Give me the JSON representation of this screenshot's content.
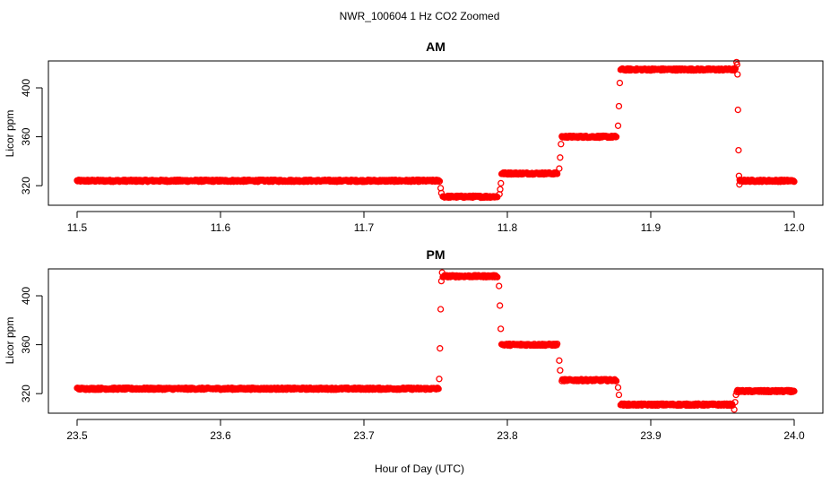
{
  "figure": {
    "title": "NWR_100604  1 Hz CO2 Zoomed",
    "xlabel": "Hour of Day (UTC)"
  },
  "chart_data": [
    {
      "type": "scatter",
      "title": "AM",
      "xlabel": "",
      "ylabel": "Licor ppm",
      "xlim": [
        11.48,
        12.02
      ],
      "ylim": [
        304,
        422
      ],
      "xticks": [
        11.5,
        11.6,
        11.7,
        11.8,
        11.9,
        12.0
      ],
      "xtick_labels": [
        "11.5",
        "11.6",
        "11.7",
        "11.8",
        "11.9",
        "12.0"
      ],
      "yticks": [
        320,
        360,
        400
      ],
      "ytick_labels": [
        "320",
        "360",
        "400"
      ],
      "grid": false,
      "legend": "none",
      "marker_color": "#ff0000",
      "segments": [
        {
          "x_start": 11.5,
          "x_end": 11.753,
          "y": 324
        },
        {
          "x_start": 11.755,
          "x_end": 11.793,
          "y": 311
        },
        {
          "x_start": 11.796,
          "x_end": 11.835,
          "y": 330
        },
        {
          "x_start": 11.838,
          "x_end": 11.876,
          "y": 360
        },
        {
          "x_start": 11.879,
          "x_end": 11.959,
          "y": 415
        },
        {
          "x_start": 11.962,
          "x_end": 12.0,
          "y": 324
        }
      ],
      "transitions": [
        {
          "x": 11.7535,
          "y": 318
        },
        {
          "x": 11.754,
          "y": 314
        },
        {
          "x": 11.7945,
          "y": 313
        },
        {
          "x": 11.795,
          "y": 317
        },
        {
          "x": 11.7955,
          "y": 322
        },
        {
          "x": 11.8362,
          "y": 334
        },
        {
          "x": 11.8368,
          "y": 343
        },
        {
          "x": 11.8374,
          "y": 354
        },
        {
          "x": 11.8772,
          "y": 369
        },
        {
          "x": 11.8778,
          "y": 385
        },
        {
          "x": 11.8784,
          "y": 404
        },
        {
          "x": 11.9598,
          "y": 421
        },
        {
          "x": 11.9602,
          "y": 419
        },
        {
          "x": 11.9605,
          "y": 411
        },
        {
          "x": 11.9608,
          "y": 382
        },
        {
          "x": 11.9612,
          "y": 349
        },
        {
          "x": 11.9615,
          "y": 328
        },
        {
          "x": 11.9618,
          "y": 321
        }
      ]
    },
    {
      "type": "scatter",
      "title": "PM",
      "xlabel": "Hour of Day (UTC)",
      "ylabel": "Licor ppm",
      "xlim": [
        23.48,
        24.02
      ],
      "ylim": [
        304,
        422
      ],
      "xticks": [
        23.5,
        23.6,
        23.7,
        23.8,
        23.9,
        24.0
      ],
      "xtick_labels": [
        "23.5",
        "23.6",
        "23.7",
        "23.8",
        "23.9",
        "24.0"
      ],
      "yticks": [
        320,
        360,
        400
      ],
      "ytick_labels": [
        "320",
        "360",
        "400"
      ],
      "grid": false,
      "legend": "none",
      "marker_color": "#ff0000",
      "segments": [
        {
          "x_start": 23.5,
          "x_end": 23.752,
          "y": 324
        },
        {
          "x_start": 23.755,
          "x_end": 23.793,
          "y": 416
        },
        {
          "x_start": 23.796,
          "x_end": 23.835,
          "y": 360
        },
        {
          "x_start": 23.838,
          "x_end": 23.876,
          "y": 331
        },
        {
          "x_start": 23.879,
          "x_end": 23.957,
          "y": 311
        },
        {
          "x_start": 23.96,
          "x_end": 24.0,
          "y": 322
        }
      ],
      "transitions": [
        {
          "x": 23.7525,
          "y": 332
        },
        {
          "x": 23.753,
          "y": 357
        },
        {
          "x": 23.7535,
          "y": 389
        },
        {
          "x": 23.754,
          "y": 412
        },
        {
          "x": 23.7545,
          "y": 419
        },
        {
          "x": 23.7942,
          "y": 408
        },
        {
          "x": 23.7948,
          "y": 392
        },
        {
          "x": 23.7954,
          "y": 373
        },
        {
          "x": 23.8362,
          "y": 347
        },
        {
          "x": 23.8368,
          "y": 339
        },
        {
          "x": 23.8772,
          "y": 325
        },
        {
          "x": 23.8778,
          "y": 319
        },
        {
          "x": 23.9582,
          "y": 307
        },
        {
          "x": 23.9588,
          "y": 313
        },
        {
          "x": 23.9594,
          "y": 319
        }
      ]
    }
  ]
}
